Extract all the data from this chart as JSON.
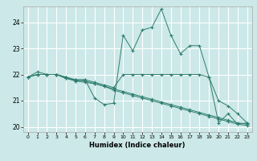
{
  "title": "",
  "xlabel": "Humidex (Indice chaleur)",
  "ylabel": "",
  "background_color": "#cce8e8",
  "grid_color": "#ffffff",
  "line_color": "#2e7d6e",
  "xlim": [
    -0.5,
    23.5
  ],
  "ylim": [
    19.8,
    24.6
  ],
  "yticks": [
    20,
    21,
    22,
    23,
    24
  ],
  "xticks": [
    0,
    1,
    2,
    3,
    4,
    5,
    6,
    7,
    8,
    9,
    10,
    11,
    12,
    13,
    14,
    15,
    16,
    17,
    18,
    19,
    20,
    21,
    22,
    23
  ],
  "lines": [
    {
      "x": [
        0,
        1,
        2,
        3,
        4,
        5,
        6,
        7,
        8,
        9,
        10,
        11,
        12,
        13,
        14,
        15,
        16,
        17,
        18,
        19,
        20,
        21,
        22,
        23
      ],
      "y": [
        21.9,
        22.1,
        22.0,
        22.0,
        21.85,
        21.75,
        21.8,
        21.1,
        20.85,
        20.9,
        23.5,
        22.9,
        23.7,
        23.8,
        24.5,
        23.5,
        22.8,
        23.1,
        23.1,
        21.9,
        20.15,
        20.5,
        20.1,
        20.15
      ]
    },
    {
      "x": [
        0,
        1,
        2,
        3,
        4,
        5,
        6,
        7,
        8,
        9,
        10,
        11,
        12,
        13,
        14,
        15,
        16,
        17,
        18,
        19,
        20,
        21,
        22,
        23
      ],
      "y": [
        21.9,
        22.0,
        22.0,
        22.0,
        21.9,
        21.75,
        21.7,
        21.65,
        21.55,
        21.45,
        21.35,
        21.25,
        21.15,
        21.05,
        20.95,
        20.85,
        20.75,
        20.65,
        20.55,
        20.45,
        20.35,
        20.25,
        20.15,
        20.1
      ]
    },
    {
      "x": [
        0,
        1,
        2,
        3,
        4,
        5,
        6,
        7,
        8,
        9,
        10,
        11,
        12,
        13,
        14,
        15,
        16,
        17,
        18,
        19,
        20,
        21,
        22,
        23
      ],
      "y": [
        21.9,
        22.0,
        22.0,
        22.0,
        21.85,
        21.8,
        21.75,
        21.65,
        21.55,
        21.4,
        21.3,
        21.2,
        21.1,
        21.0,
        20.9,
        20.8,
        20.7,
        20.6,
        20.5,
        20.4,
        20.3,
        20.2,
        20.1,
        20.05
      ]
    },
    {
      "x": [
        0,
        1,
        2,
        3,
        4,
        5,
        6,
        7,
        8,
        9,
        10,
        11,
        12,
        13,
        14,
        15,
        16,
        17,
        18,
        19,
        20,
        21,
        22,
        23
      ],
      "y": [
        21.9,
        22.0,
        22.0,
        22.0,
        21.9,
        21.8,
        21.8,
        21.7,
        21.6,
        21.5,
        22.0,
        22.0,
        22.0,
        22.0,
        22.0,
        22.0,
        22.0,
        22.0,
        22.0,
        21.9,
        21.0,
        20.8,
        20.5,
        20.15
      ]
    }
  ]
}
